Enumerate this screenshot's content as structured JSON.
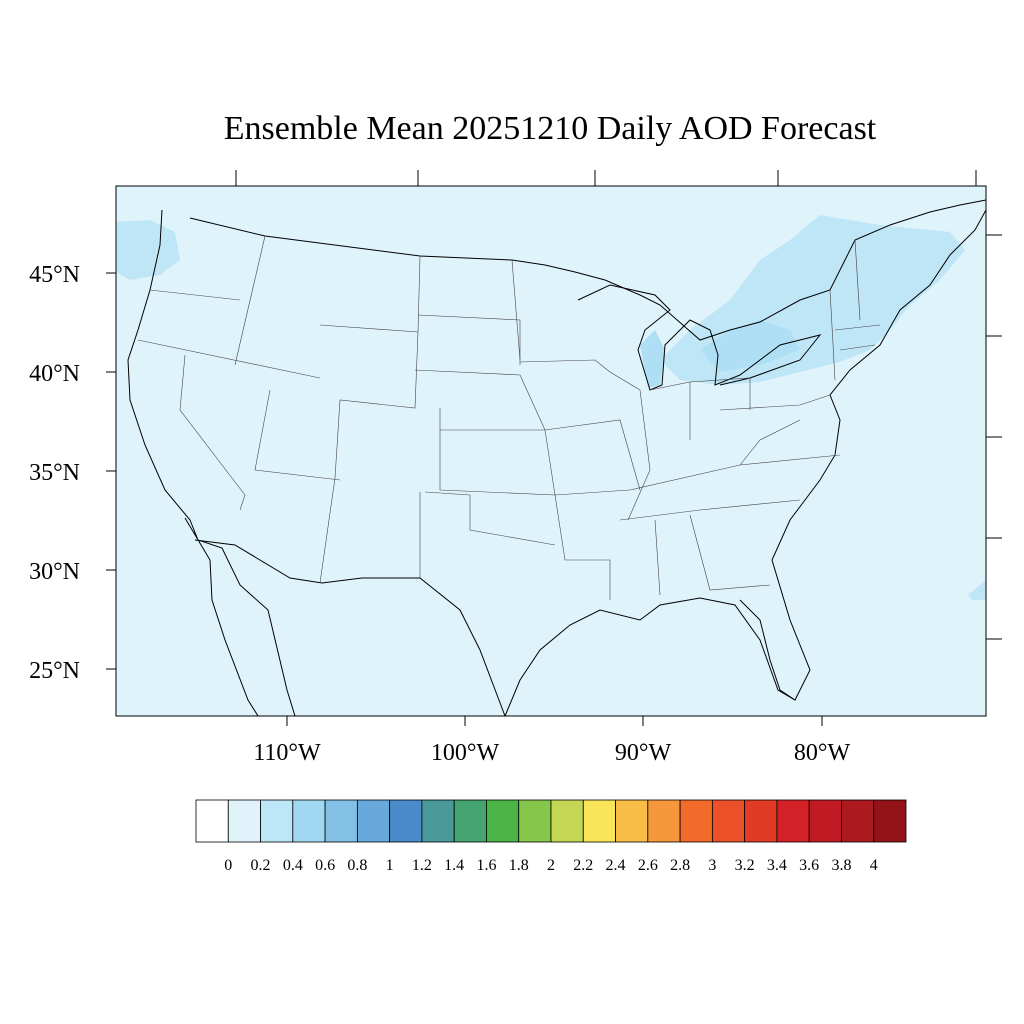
{
  "title": "Ensemble Mean 20251210 Daily AOD Forecast",
  "colors": {
    "background": "#dff3fb",
    "land_fill": "#dcf1fb",
    "aod_plume": "#bfe6f7",
    "aod_plume_strong": "#aedff4",
    "boundary": "#000000"
  },
  "axes": {
    "lat_labels": [
      "45°N",
      "40°N",
      "35°N",
      "30°N",
      "25°N"
    ],
    "lon_labels": [
      "110°W",
      "100°W",
      "90°W",
      "80°W"
    ]
  },
  "colorbar": {
    "colors": [
      "#ffffff",
      "#e0f3fb",
      "#bde6f7",
      "#a0d8f2",
      "#83c0e6",
      "#68a8db",
      "#4a8ccb",
      "#4a9a9c",
      "#45a46f",
      "#4ab546",
      "#86c64b",
      "#c4d755",
      "#f9e55a",
      "#f8bd47",
      "#f6973c",
      "#f26b2b",
      "#ea5128",
      "#e03c25",
      "#d42128",
      "#c21a23",
      "#ac1a20",
      "#931418"
    ],
    "labels": [
      "0",
      "0.2",
      "0.4",
      "0.6",
      "0.8",
      "1",
      "1.2",
      "1.4",
      "1.6",
      "1.8",
      "2",
      "2.2",
      "2.4",
      "2.6",
      "2.8",
      "3",
      "3.2",
      "3.4",
      "3.6",
      "3.8",
      "4"
    ]
  }
}
